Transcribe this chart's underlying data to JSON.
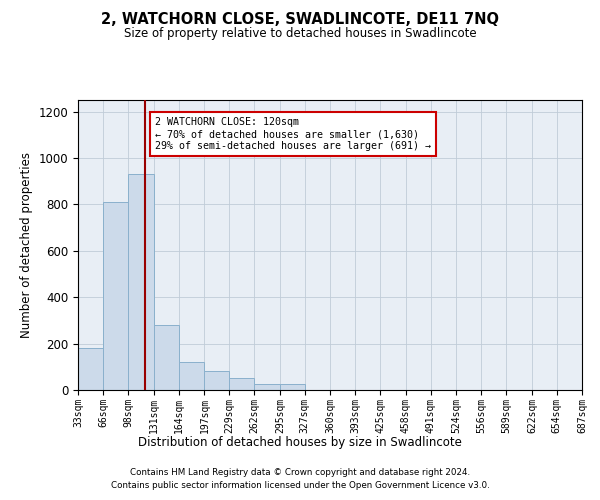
{
  "title": "2, WATCHORN CLOSE, SWADLINCOTE, DE11 7NQ",
  "subtitle": "Size of property relative to detached houses in Swadlincote",
  "xlabel": "Distribution of detached houses by size in Swadlincote",
  "ylabel": "Number of detached properties",
  "bar_color": "#ccdaea",
  "bar_edge_color": "#8ab0cc",
  "bins": [
    33,
    66,
    98,
    131,
    164,
    197,
    229,
    262,
    295,
    327,
    360,
    393,
    425,
    458,
    491,
    524,
    556,
    589,
    622,
    654,
    687
  ],
  "counts": [
    180,
    810,
    930,
    280,
    120,
    80,
    50,
    25,
    25,
    0,
    0,
    0,
    0,
    0,
    0,
    0,
    0,
    0,
    0,
    0
  ],
  "property_size": 120,
  "annotation_text": "2 WATCHORN CLOSE: 120sqm\n← 70% of detached houses are smaller (1,630)\n29% of semi-detached houses are larger (691) →",
  "annotation_box_color": "white",
  "annotation_box_edge": "#cc0000",
  "vline_color": "#990000",
  "ylim": [
    0,
    1250
  ],
  "yticks": [
    0,
    200,
    400,
    600,
    800,
    1000,
    1200
  ],
  "footer_line1": "Contains HM Land Registry data © Crown copyright and database right 2024.",
  "footer_line2": "Contains public sector information licensed under the Open Government Licence v3.0.",
  "bg_color": "white",
  "ax_bg_color": "#e8eef5",
  "grid_color": "#c0ccd8"
}
